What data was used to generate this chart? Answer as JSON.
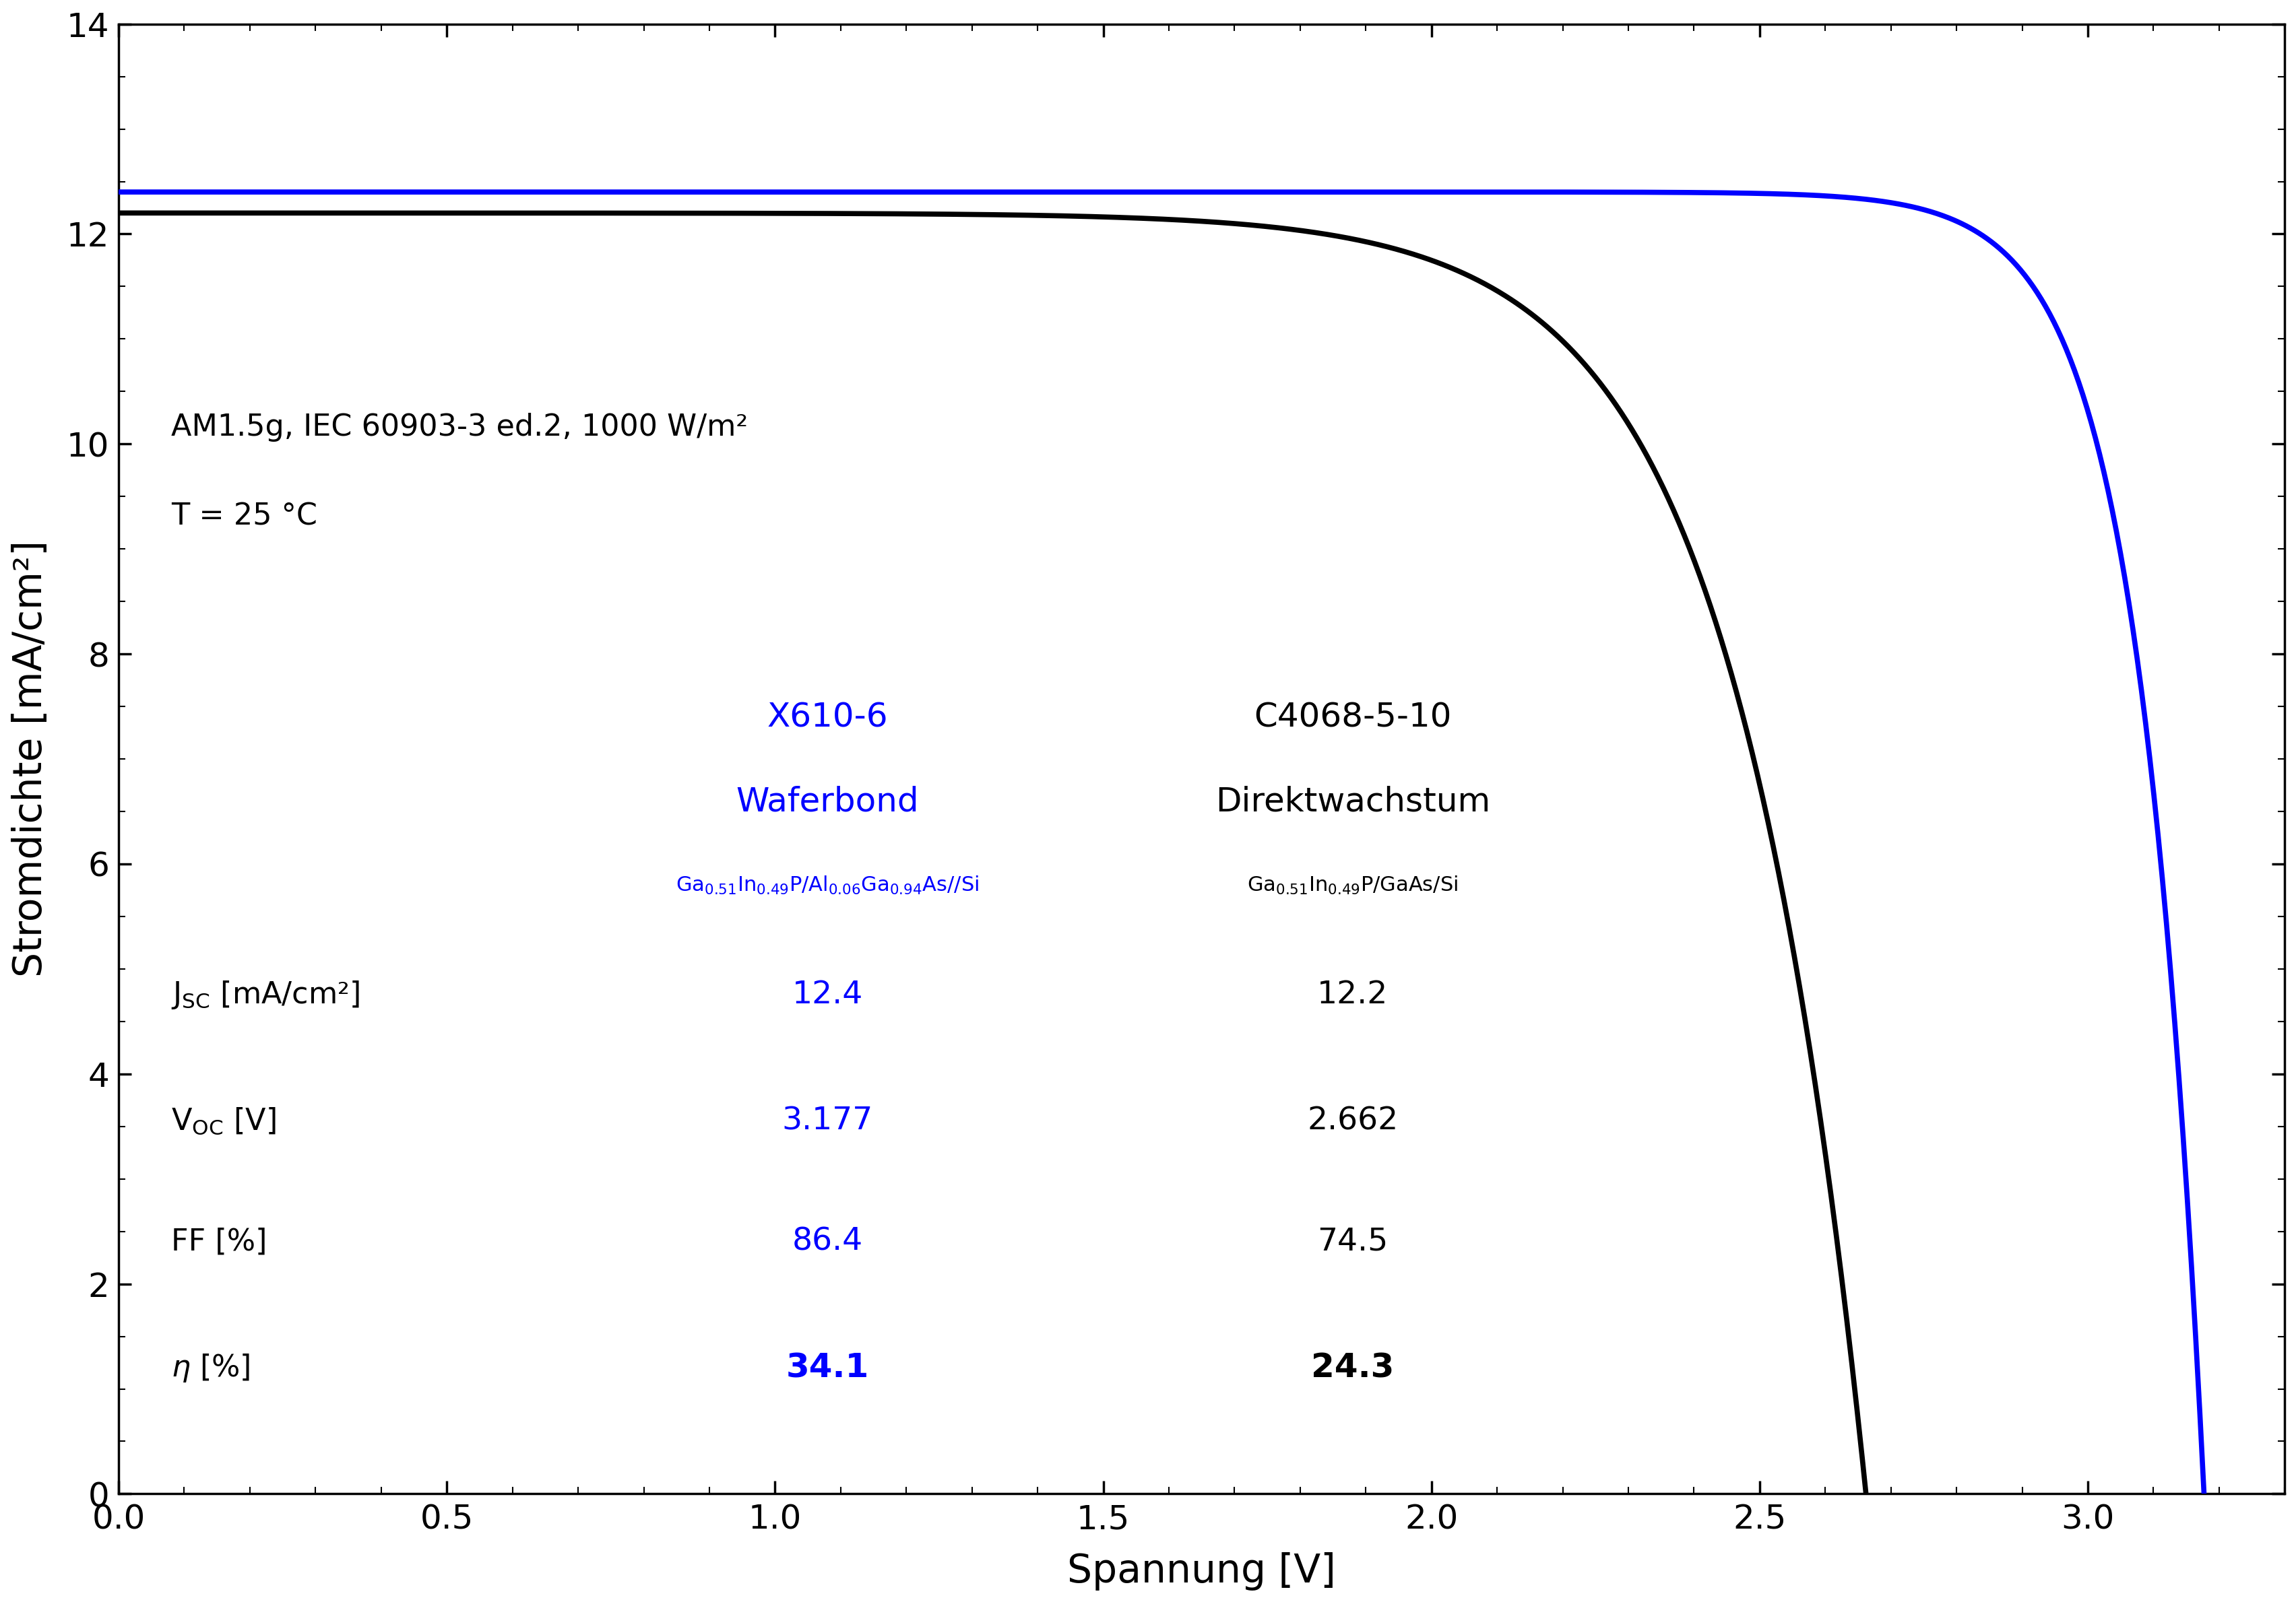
{
  "title": "",
  "xlabel": "Spannung [V]",
  "ylabel": "Stromdichte [mA/cm²]",
  "xlim": [
    0.0,
    3.3
  ],
  "ylim": [
    0.0,
    14.0
  ],
  "xticks": [
    0.0,
    0.5,
    1.0,
    1.5,
    2.0,
    2.5,
    3.0
  ],
  "yticks": [
    0,
    2,
    4,
    6,
    8,
    10,
    12,
    14
  ],
  "bg_color": "#ffffff",
  "curve_blue_color": "#0000ff",
  "curve_black_color": "#000000",
  "line_width": 5.5,
  "black_Jsc": 12.2,
  "black_Voc": 2.662,
  "black_FF": 0.745,
  "blue_Jsc": 12.4,
  "blue_Voc": 3.177,
  "blue_FF": 0.864,
  "annotation_line1": "AM1.5g, IEC 60903-3 ed.2, 1000 W/m²",
  "annotation_line2": "T = 25 °C",
  "label_blue_name": "X610-6",
  "label_blue_type": "Waferbond",
  "label_black_name": "C4068-5-10",
  "label_black_type": "Direktwachstum",
  "param_label_Jsc": "J",
  "param_label_Jsc_sub": "SC",
  "param_label_Jsc_unit": " [mA/cm²]",
  "param_label_Voc": "V",
  "param_label_Voc_sub": "OC",
  "param_label_Voc_unit": " [V]",
  "param_label_FF": "FF [%]",
  "param_label_eta": "η [%]",
  "blue_Jsc_val": "12.4",
  "blue_Voc_val": "3.177",
  "blue_FF_val": "86.4",
  "blue_eta_val": "34.1",
  "black_Jsc_val": "12.2",
  "black_Voc_val": "2.662",
  "black_FF_val": "74.5",
  "black_eta_val": "24.3",
  "fontsize_axis_label": 42,
  "fontsize_tick": 36,
  "fontsize_annotation": 32,
  "fontsize_cell_name": 36,
  "fontsize_formula": 22,
  "fontsize_param_label": 32,
  "fontsize_param_value": 34,
  "fontsize_eta": 36
}
